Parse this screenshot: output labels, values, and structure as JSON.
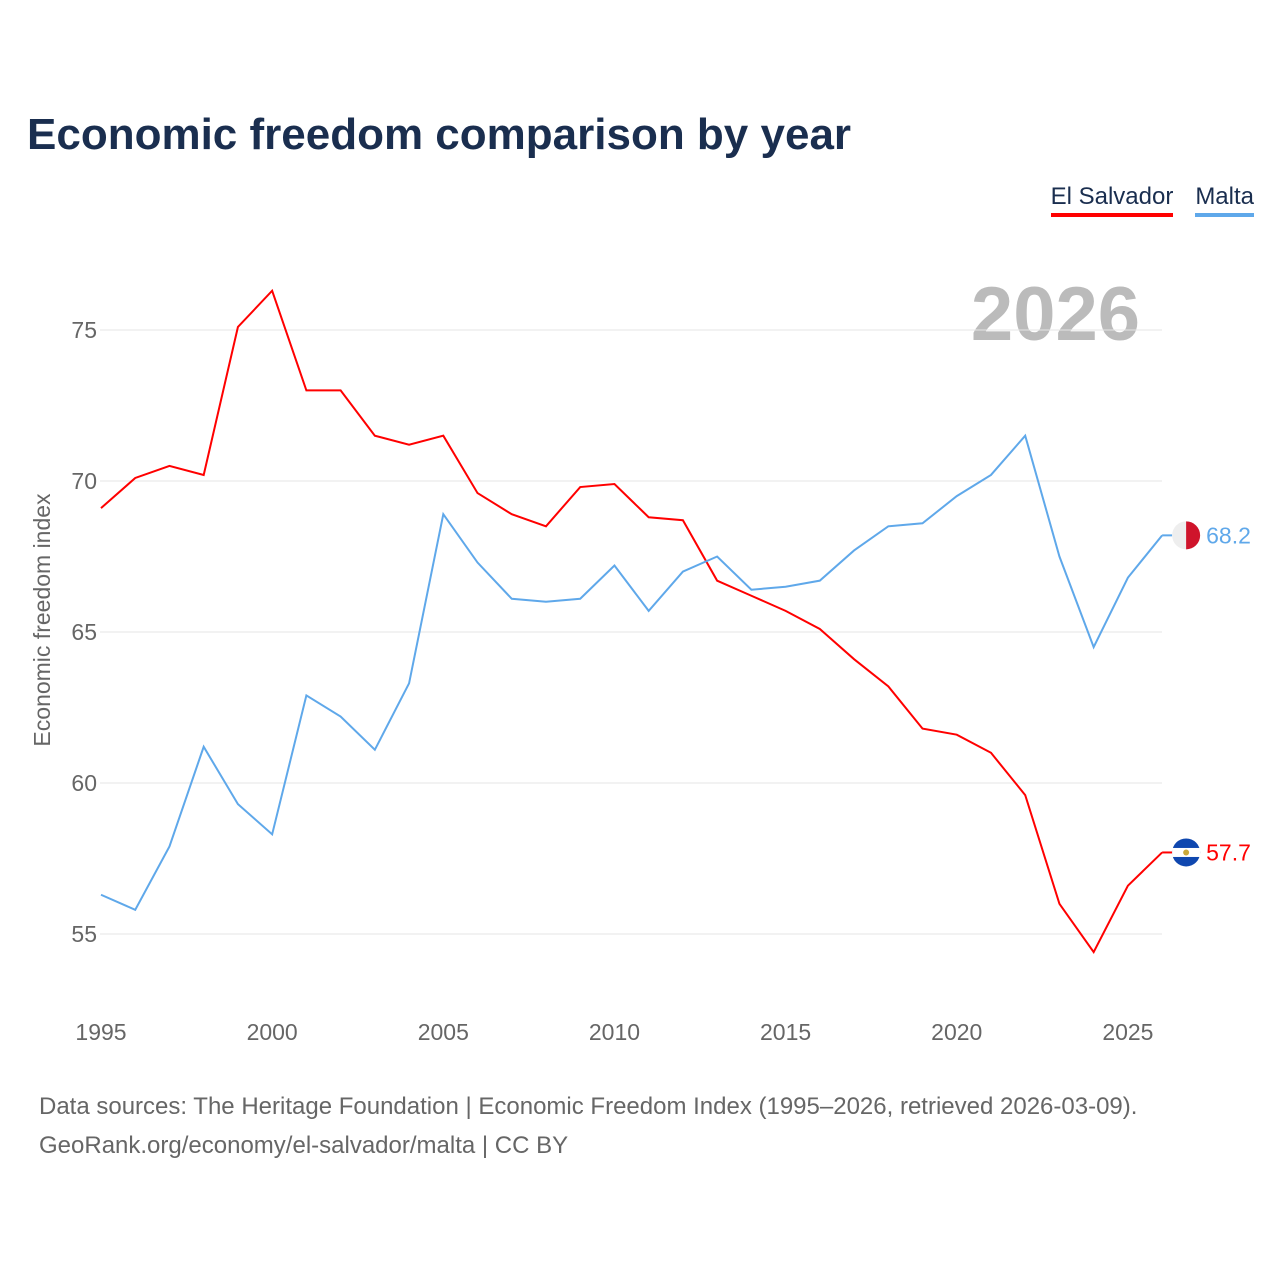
{
  "title": "Economic freedom comparison by year",
  "footer": {
    "line1": "Data sources: The Heritage Foundation | Economic Freedom Index (1995–2026, retrieved 2026-03-09).",
    "line2": "GeoRank.org/economy/el-salvador/malta | CC BY"
  },
  "chart_data": {
    "type": "line",
    "title": "Economic freedom comparison by year",
    "xlabel": "",
    "ylabel": "Economic freedom index",
    "year_watermark": "2026",
    "x": [
      1995,
      1996,
      1997,
      1998,
      1999,
      2000,
      2001,
      2002,
      2003,
      2004,
      2005,
      2006,
      2007,
      2008,
      2009,
      2010,
      2011,
      2012,
      2013,
      2014,
      2015,
      2016,
      2017,
      2018,
      2019,
      2020,
      2021,
      2022,
      2023,
      2024,
      2025,
      2026
    ],
    "xticks": [
      "1995",
      "2000",
      "2005",
      "2010",
      "2015",
      "2020",
      "2025"
    ],
    "yticks": [
      "55",
      "60",
      "65",
      "70",
      "75"
    ],
    "xlim": [
      1995,
      2026
    ],
    "ylim": [
      52.5,
      77.5
    ],
    "grid": true,
    "legend_placement": "top-right",
    "series": [
      {
        "name": "El Salvador",
        "color": "#ff0000",
        "end_label": "57.7",
        "values": [
          69.1,
          70.1,
          70.5,
          70.2,
          75.1,
          76.3,
          73.0,
          73.0,
          71.5,
          71.2,
          71.5,
          69.6,
          68.9,
          68.5,
          69.8,
          69.9,
          68.8,
          68.7,
          66.7,
          66.2,
          65.7,
          65.1,
          64.1,
          63.2,
          61.8,
          61.6,
          61.0,
          59.6,
          56.0,
          54.4,
          56.6,
          57.7
        ]
      },
      {
        "name": "Malta",
        "color": "#5fa8ea",
        "end_label": "68.2",
        "values": [
          56.3,
          55.8,
          57.9,
          61.2,
          59.3,
          58.3,
          62.9,
          62.2,
          61.1,
          63.3,
          68.9,
          67.3,
          66.1,
          66.0,
          66.1,
          67.2,
          65.7,
          67.0,
          67.5,
          66.4,
          66.5,
          66.7,
          67.7,
          68.5,
          68.6,
          69.5,
          70.2,
          71.5,
          67.5,
          64.5,
          66.8,
          68.2
        ]
      }
    ]
  }
}
